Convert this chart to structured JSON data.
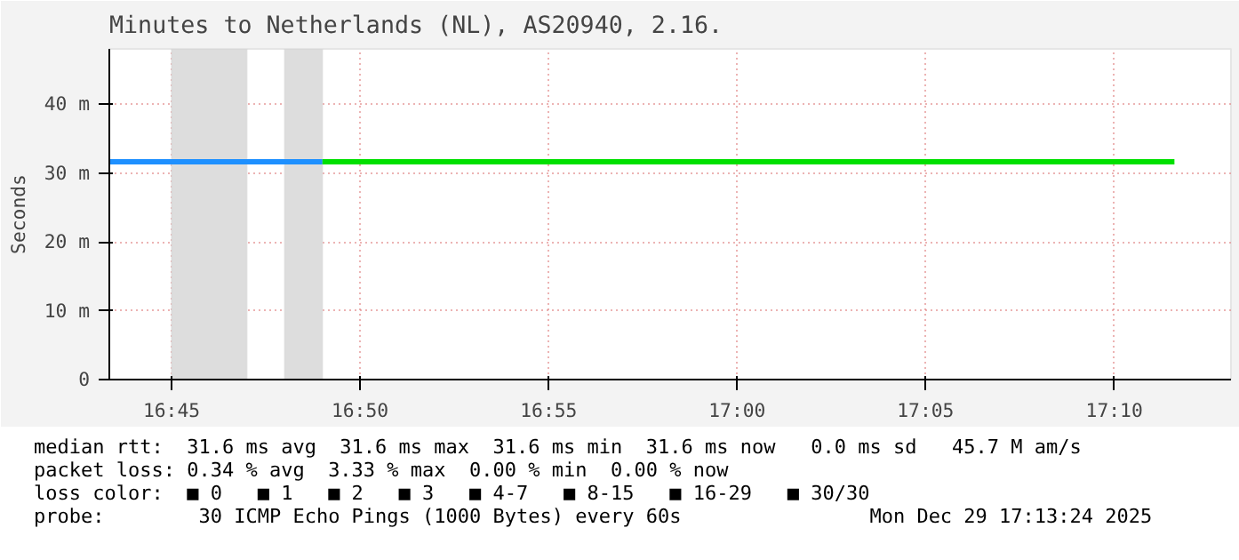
{
  "chart_data": {
    "type": "line",
    "title": "Minutes to Netherlands (NL), AS20940, 2.16.",
    "ylabel": "Seconds",
    "series": [
      {
        "color": "#1e90ff",
        "x": [
          16.7225,
          16.8167
        ],
        "values": [
          31.6,
          31.6
        ]
      },
      {
        "color": "#00e000",
        "x": [
          16.8167,
          17.1933
        ],
        "values": [
          31.6,
          31.6
        ]
      }
    ],
    "xlim": [
      16.7225,
      17.2183
    ],
    "ylim": [
      0,
      48
    ],
    "xticks": [
      {
        "value": 16.75,
        "label": "16:45"
      },
      {
        "value": 16.8333,
        "label": "16:50"
      },
      {
        "value": 16.9167,
        "label": "16:55"
      },
      {
        "value": 17.0,
        "label": "17:00"
      },
      {
        "value": 17.0833,
        "label": "17:05"
      },
      {
        "value": 17.1667,
        "label": "17:10"
      }
    ],
    "yticks": [
      {
        "value": 0,
        "label": "0"
      },
      {
        "value": 10,
        "label": "10 m"
      },
      {
        "value": 20,
        "label": "20 m"
      },
      {
        "value": 30,
        "label": "30 m"
      },
      {
        "value": 40,
        "label": "40 m"
      }
    ],
    "bands": [
      {
        "axis": "x",
        "from": 16.75,
        "to": 16.7833,
        "color": "#dddddd"
      },
      {
        "axis": "x",
        "from": 16.8,
        "to": 16.8167,
        "color": "#dddddd"
      }
    ],
    "grid": true,
    "line_style": "solid",
    "annotations": [
      "median rtt:  31.6 ms avg  31.6 ms max  31.6 ms min  31.6 ms now   0.0 ms sd   45.7 M am/s",
      "packet loss: 0.34 % avg  3.33 % max  0.00 % min  0.00 % now",
      "loss color:  ■ 0   ■ 1   ■ 2   ■ 3   ■ 4-7   ■ 8-15   ■ 16-29   ■ 30/30",
      "probe:        30 ICMP Echo Pings (1000 Bytes) every 60s                Mon Dec 29 17:13:24 2025"
    ]
  }
}
